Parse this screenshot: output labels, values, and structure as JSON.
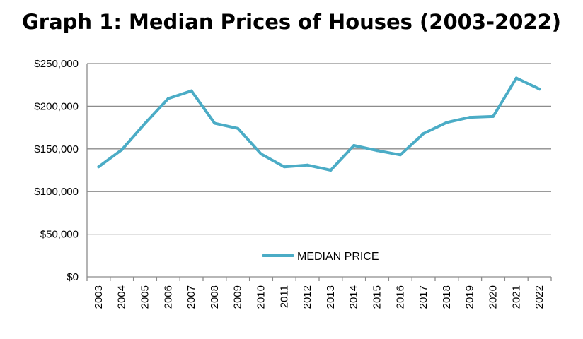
{
  "chart_data": {
    "type": "line",
    "title": "Graph 1: Median Prices of Houses (2003-2022)",
    "x": [
      "2003",
      "2004",
      "2005",
      "2006",
      "2007",
      "2008",
      "2009",
      "2010",
      "2011",
      "2012",
      "2013",
      "2014",
      "2015",
      "2016",
      "2017",
      "2018",
      "2019",
      "2020",
      "2021",
      "2022"
    ],
    "series": [
      {
        "name": "MEDIAN PRICE",
        "color": "#4bacc6",
        "values": [
          129000,
          149000,
          180000,
          209000,
          218000,
          180000,
          174000,
          144000,
          129000,
          131000,
          125000,
          154000,
          148000,
          143000,
          168000,
          181000,
          187000,
          188000,
          233000,
          220000
        ]
      }
    ],
    "y_ticks": [
      "$0",
      "$50,000",
      "$100,000",
      "$150,000",
      "$200,000",
      "$250,000"
    ],
    "ylim": [
      0,
      250000
    ],
    "xlabel": "",
    "ylabel": "",
    "grid": true,
    "legend_position": "inside-bottom-center"
  }
}
